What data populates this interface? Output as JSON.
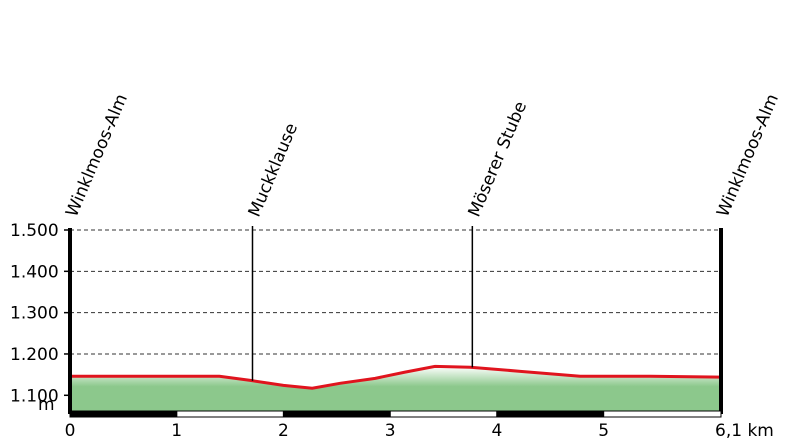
{
  "chart_data": {
    "type": "area",
    "y_unit": "m",
    "x": [
      0,
      1.4,
      1.69,
      2.0,
      2.27,
      2.53,
      2.86,
      3.14,
      3.42,
      3.75,
      4.22,
      4.78,
      5.44,
      6.1
    ],
    "values": [
      1146,
      1146,
      1136,
      1124,
      1117,
      1129,
      1141,
      1156,
      1170,
      1168,
      1158,
      1146,
      1146,
      1144
    ],
    "color": "#e0141e",
    "fill_color": "#8cc88c",
    "xlim": [
      0,
      6.1
    ],
    "ylim": [
      1062,
      1500
    ],
    "xticks": [
      0,
      1,
      2,
      3,
      4,
      5,
      {
        "value": 6.1,
        "label": "6,1 km"
      }
    ],
    "yticks": [
      {
        "value": 1100,
        "label": "1.100"
      },
      {
        "value": 1200,
        "label": "1.200"
      },
      {
        "value": 1300,
        "label": "1.300"
      },
      {
        "value": 1400,
        "label": "1.400"
      },
      {
        "value": 1500,
        "label": "1.500"
      }
    ],
    "grid": true,
    "waypoints": [
      {
        "name": "Winklmoos-Alm",
        "x": 0
      },
      {
        "name": "Muckklause",
        "x": 1.71
      },
      {
        "name": "Möserer Stube",
        "x": 3.77
      },
      {
        "name": "Winklmoos-Alm",
        "x": 6.1
      }
    ]
  }
}
